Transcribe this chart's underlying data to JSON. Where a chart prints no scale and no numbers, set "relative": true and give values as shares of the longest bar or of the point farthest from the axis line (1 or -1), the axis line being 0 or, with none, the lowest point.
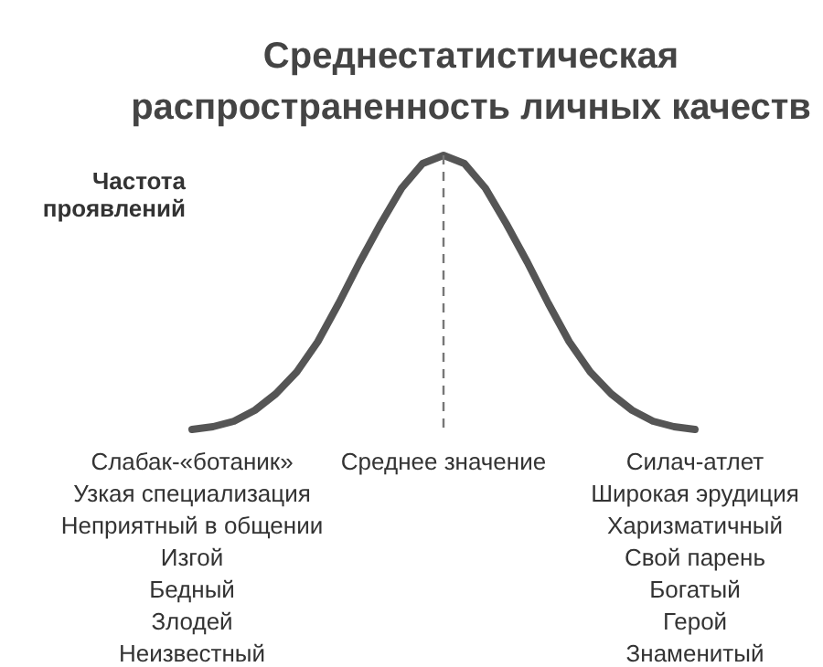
{
  "chart_data": {
    "type": "line",
    "title": "Среднестатистическая\nраспространенность личных качеств",
    "ylabel": "Частота\nпроявлений",
    "relative": true,
    "categories": [
      null,
      null,
      null,
      null,
      null,
      null,
      null,
      null,
      null,
      null,
      null,
      null,
      null,
      null,
      null,
      null,
      null,
      null,
      null,
      null,
      null,
      null,
      null,
      null,
      null
    ],
    "series": [
      {
        "color": "#555555",
        "values": [
          0,
          0.01,
          0.03,
          0.07,
          0.13,
          0.21,
          0.32,
          0.46,
          0.61,
          0.75,
          0.88,
          0.97,
          1,
          0.97,
          0.88,
          0.75,
          0.61,
          0.46,
          0.32,
          0.21,
          0.13,
          0.07,
          0.03,
          0.01,
          0
        ]
      }
    ],
    "annotations": [
      "Слабак-«ботаник»\nУзкая специализация\nНеприятный в общении\nИзгой\nБедный\nЗлодей\nНеизвестный",
      "Среднее значение",
      "Силач-атлет\nШирокая эрудиция\nХаризматичный\nСвой парень\nБогатый\nГерой\nЗнаменитый"
    ]
  }
}
